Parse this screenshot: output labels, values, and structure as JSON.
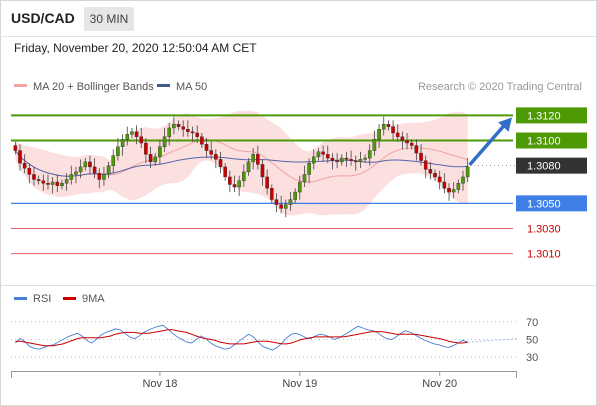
{
  "header": {
    "symbol": "USD/CAD",
    "timeframe": "30 MIN",
    "timestamp": "Friday, November 20, 2020 12:50:04 AM CET"
  },
  "legend": {
    "ma20_label": "MA 20 + Bollinger Bands",
    "ma50_label": "MA 50",
    "credit": "Research © 2020 Trading Central",
    "rsi_label": "RSI",
    "ma9_label": "9MA"
  },
  "colors": {
    "resistance": "#4e9a06",
    "resistance_label_bg": "#4e9a06",
    "support": "#3f7fe8",
    "target": "#e06666",
    "pivot": "#333333",
    "bollinger_fill": "#fbd9d9",
    "ma20": "#f1a3a3",
    "ma50": "#5566aa",
    "candle_up": "#4e9a06",
    "candle_down": "#cc0000",
    "arrow": "#2f6fc6",
    "rsi": "#4a7fd6",
    "rsi_ma": "#cc0000"
  },
  "chart_data": {
    "type": "candlestick",
    "instrument": "USD/CAD",
    "timeframe": "30 MIN",
    "ylim": [
      1.2993,
      1.3137
    ],
    "levels": [
      {
        "value": 1.312,
        "label": "1.3120",
        "kind": "resistance"
      },
      {
        "value": 1.31,
        "label": "1.3100",
        "kind": "resistance"
      },
      {
        "value": 1.308,
        "label": "1.3080",
        "kind": "pivot"
      },
      {
        "value": 1.305,
        "label": "1.3050",
        "kind": "support"
      },
      {
        "value": 1.303,
        "label": "1.3030",
        "kind": "target"
      },
      {
        "value": 1.301,
        "label": "1.3010",
        "kind": "target"
      }
    ],
    "x_tick_labels": [
      "Nov 18",
      "Nov 19",
      "Nov 20"
    ],
    "x_tick_index": [
      31,
      61,
      91
    ],
    "closes": [
      1.3092,
      1.3082,
      1.3078,
      1.3073,
      1.3069,
      1.3068,
      1.3066,
      1.3065,
      1.3067,
      1.3064,
      1.3066,
      1.3069,
      1.3073,
      1.3075,
      1.3079,
      1.3083,
      1.3079,
      1.3074,
      1.3069,
      1.3073,
      1.308,
      1.3088,
      1.3095,
      1.3101,
      1.3105,
      1.3107,
      1.3103,
      1.3098,
      1.3089,
      1.3083,
      1.3087,
      1.3095,
      1.3103,
      1.311,
      1.3113,
      1.3111,
      1.3109,
      1.3107,
      1.3106,
      1.3103,
      1.3097,
      1.3092,
      1.3089,
      1.3085,
      1.3079,
      1.3071,
      1.3065,
      1.3063,
      1.3068,
      1.3075,
      1.3083,
      1.3089,
      1.3081,
      1.3071,
      1.3062,
      1.3053,
      1.3049,
      1.3046,
      1.3049,
      1.3053,
      1.3059,
      1.3067,
      1.3073,
      1.3082,
      1.3087,
      1.3091,
      1.3089,
      1.3086,
      1.3084,
      1.3083,
      1.3086,
      1.3085,
      1.3084,
      1.3083,
      1.3085,
      1.3086,
      1.3092,
      1.3101,
      1.3109,
      1.3113,
      1.3111,
      1.3106,
      1.3103,
      1.31,
      1.3098,
      1.3096,
      1.309,
      1.3084,
      1.3077,
      1.3074,
      1.3071,
      1.3067,
      1.3062,
      1.3059,
      1.3061,
      1.3066,
      1.3071,
      1.3079
    ],
    "rsi": {
      "ylim": [
        20,
        80
      ],
      "levels": [
        70,
        50,
        30
      ],
      "series": [
        46,
        51,
        48,
        42,
        40,
        39,
        41,
        43,
        44,
        47,
        50,
        53,
        55,
        57,
        54,
        49,
        46,
        50,
        55,
        58,
        60,
        62,
        61,
        57,
        53,
        51,
        54,
        58,
        61,
        63,
        65,
        66,
        62,
        57,
        53,
        50,
        47,
        46,
        50,
        54,
        51,
        46,
        43,
        41,
        39,
        40,
        44,
        48,
        52,
        56,
        53,
        47,
        42,
        40,
        38,
        41,
        46,
        52,
        56,
        57,
        55,
        52,
        51,
        54,
        56,
        55,
        53,
        50,
        52,
        55,
        58,
        62,
        65,
        63,
        61,
        60,
        58,
        54,
        51,
        50,
        53,
        57,
        60,
        58,
        55,
        52,
        49,
        47,
        45,
        44,
        42,
        41,
        43,
        46,
        49,
        47
      ],
      "ma9": [
        48,
        48,
        47,
        46,
        45,
        44,
        43,
        43,
        43,
        44,
        45,
        47,
        49,
        51,
        52,
        52,
        52,
        52,
        52,
        53,
        54,
        56,
        57,
        58,
        58,
        58,
        57,
        57,
        57,
        58,
        59,
        60,
        61,
        61,
        60,
        59,
        58,
        56,
        54,
        52,
        51,
        50,
        49,
        47,
        46,
        45,
        45,
        45,
        45,
        46,
        47,
        48,
        48,
        48,
        47,
        46,
        45,
        45,
        46,
        48,
        50,
        51,
        52,
        53,
        53,
        53,
        53,
        53,
        53,
        53,
        54,
        55,
        56,
        57,
        58,
        59,
        59,
        59,
        58,
        57,
        56,
        56,
        56,
        56,
        56,
        55,
        54,
        53,
        52,
        51,
        50,
        48,
        47,
        46,
        46,
        47
      ]
    }
  }
}
